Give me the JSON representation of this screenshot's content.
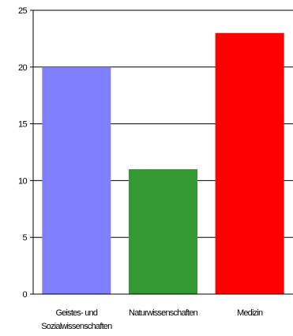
{
  "chart_data": {
    "type": "bar",
    "title": "",
    "xlabel": "",
    "ylabel": "",
    "categories": [
      [
        "Geistes- und",
        "Sozialwissenschaften"
      ],
      [
        "Naturwissenschaften"
      ],
      [
        "Medizin"
      ]
    ],
    "values": [
      20,
      11,
      23
    ],
    "colors": [
      "#8080ff",
      "#339933",
      "#ff0000"
    ],
    "ylim": [
      0,
      25
    ],
    "yticks": [
      0,
      5,
      10,
      15,
      20,
      25
    ],
    "grid": true,
    "legend": "none"
  }
}
